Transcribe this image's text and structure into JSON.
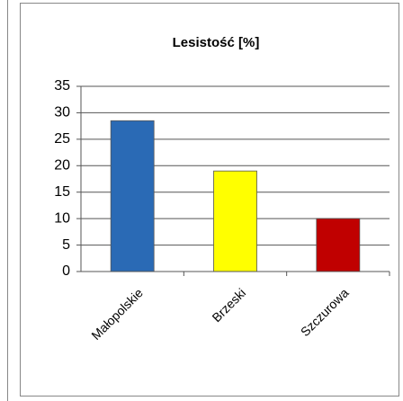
{
  "chart_data": {
    "type": "bar",
    "title": "Lesistość [%]",
    "categories": [
      "Małopolskie",
      "Brzeski",
      "Szczurowa"
    ],
    "values": [
      28.5,
      19,
      10
    ],
    "colors": [
      "#2a6ab5",
      "#ffff00",
      "#c00000"
    ],
    "ylim": [
      0,
      35
    ],
    "yticks": [
      0,
      5,
      10,
      15,
      20,
      25,
      30,
      35
    ],
    "grid": true
  }
}
